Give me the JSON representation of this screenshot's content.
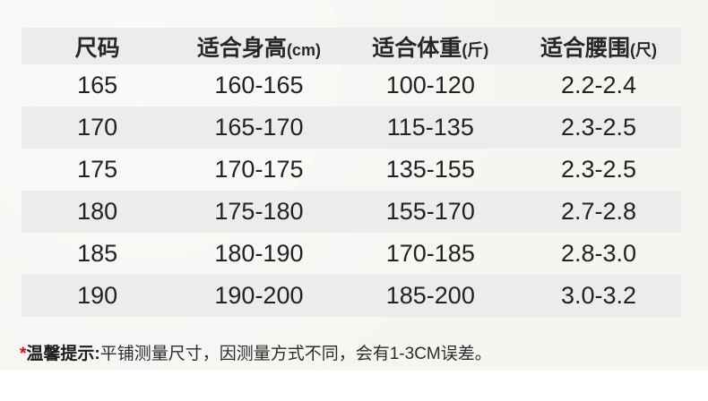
{
  "colors": {
    "page_background": "#f6f5f2",
    "band_gray": "#ececec",
    "text_dark": "#222222",
    "note_asterisk_red": "#e60012",
    "bottom_strip_white": "#ffffff"
  },
  "chart_data": {
    "type": "table",
    "title": "",
    "columns": [
      {
        "label": "尺码",
        "unit": ""
      },
      {
        "label": "适合身高",
        "unit": "(cm)"
      },
      {
        "label": "适合体重",
        "unit": "(斤)"
      },
      {
        "label": "适合腰围",
        "unit": "(尺)"
      }
    ],
    "rows": [
      [
        "165",
        "160-165",
        "100-120",
        "2.2-2.4"
      ],
      [
        "170",
        "165-170",
        "115-135",
        "2.3-2.5"
      ],
      [
        "175",
        "170-175",
        "135-155",
        "2.3-2.5"
      ],
      [
        "180",
        "175-180",
        "155-170",
        "2.7-2.8"
      ],
      [
        "185",
        "180-190",
        "170-185",
        "2.8-3.0"
      ],
      [
        "190",
        "190-200",
        "185-200",
        "3.0-3.2"
      ]
    ]
  },
  "note": {
    "asterisk": "*",
    "prefix": "温馨提示:",
    "text": "平铺测量尺寸，因测量方式不同，会有1-3CM误差。"
  }
}
